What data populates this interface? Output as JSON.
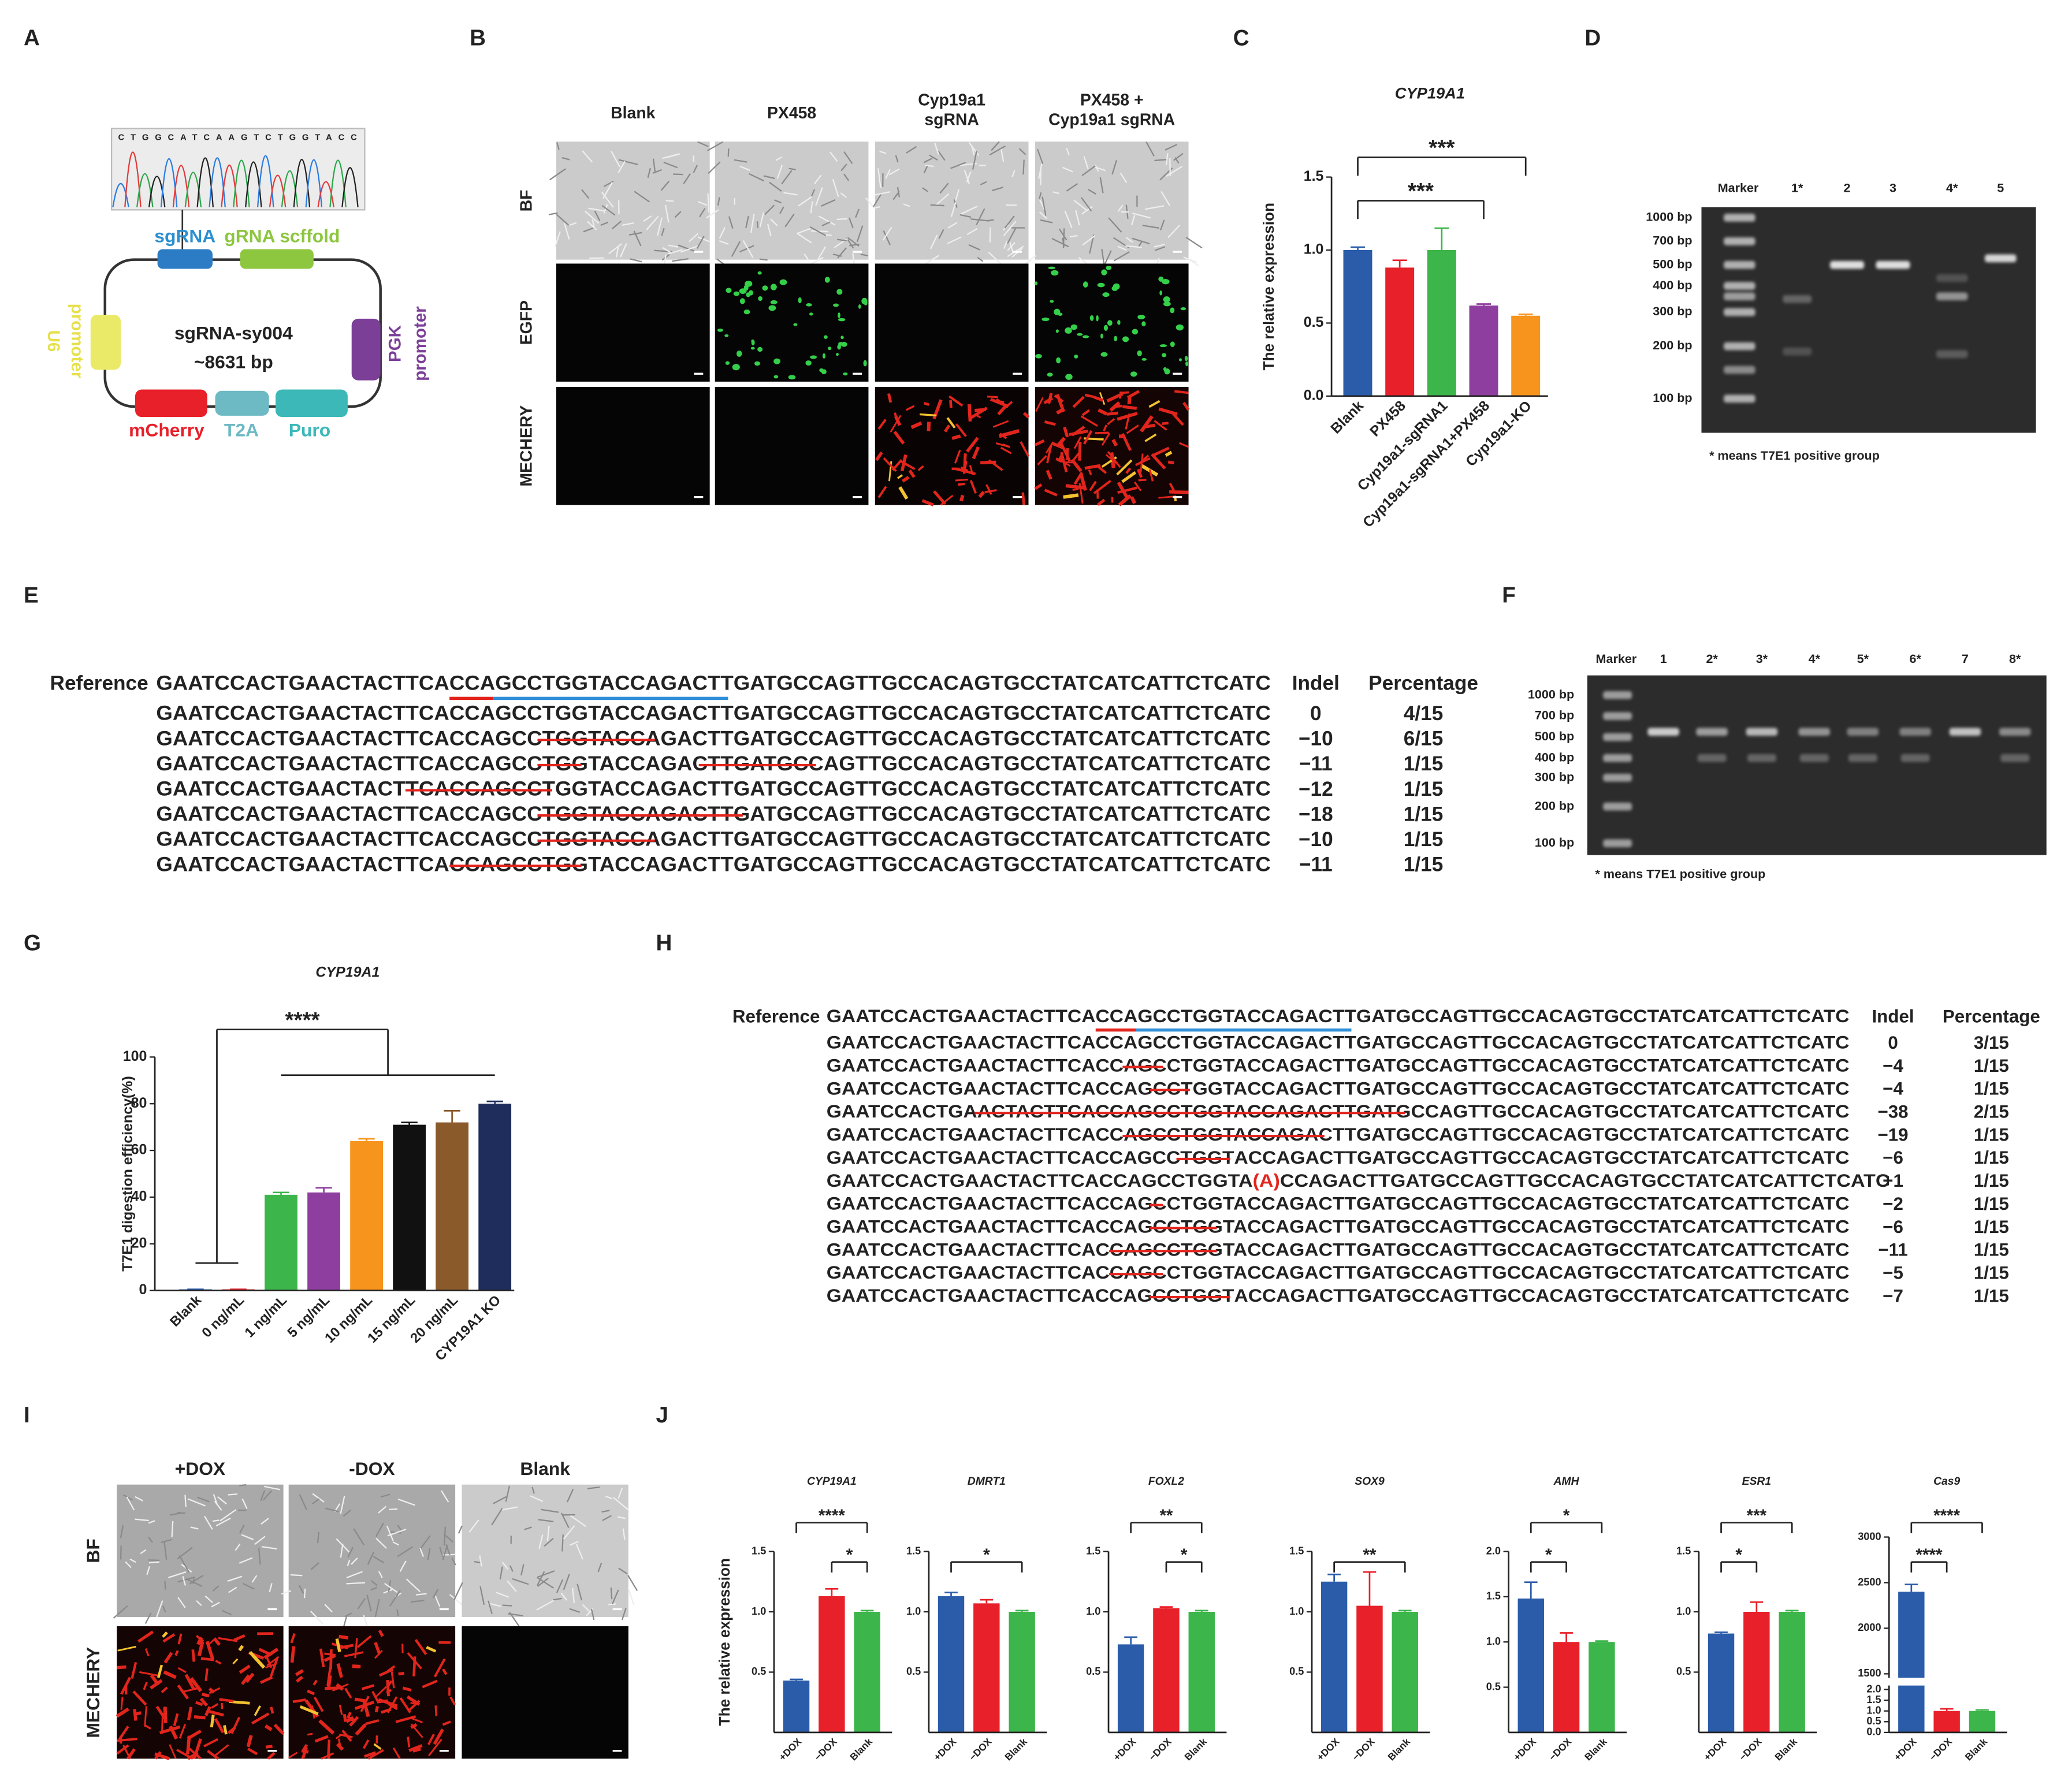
{
  "panel_labels": [
    "A",
    "B",
    "C",
    "D",
    "E",
    "F",
    "G",
    "H",
    "I",
    "J"
  ],
  "plasmid": {
    "chromatogram": "CTGGCATCAAGTCTGGTACC",
    "name": "sgRNA-sy004",
    "size": "~8631 bp",
    "sgrna": "sgRNA",
    "scaffold": "gRNA scffold",
    "u6": [
      "U6",
      "promoter"
    ],
    "pgk": [
      "PGK",
      "promoter"
    ],
    "mcherry": "mCherry",
    "t2a": "T2A",
    "puro": "Puro"
  },
  "imaging_B": {
    "columns": [
      [
        "Blank"
      ],
      [
        "PX458"
      ],
      [
        "Cyp19a1",
        "sgRNA"
      ],
      [
        "PX458 +",
        "Cyp19a1 sgRNA"
      ]
    ],
    "rows": [
      "BF",
      "EGFP",
      "MECHERY"
    ]
  },
  "imaging_I": {
    "columns": [
      "+DOX",
      "-DOX",
      "Blank"
    ],
    "rows": [
      "BF",
      "MECHERY"
    ]
  },
  "gel_D": {
    "lanes": [
      "Marker",
      "1*",
      "2",
      "3",
      "4*",
      "5"
    ],
    "ladder": [
      "1000 bp",
      "700 bp",
      "500 bp",
      "400 bp",
      "300 bp",
      "200 bp",
      "100 bp"
    ],
    "note": "* means T7E1 positive group"
  },
  "gel_F": {
    "lanes": [
      "Marker",
      "1",
      "2*",
      "3*",
      "4*",
      "5*",
      "6*",
      "7",
      "8*"
    ],
    "ladder": [
      "1000 bp",
      "700 bp",
      "500 bp",
      "400 bp",
      "300 bp",
      "200 bp",
      "100 bp"
    ],
    "note": "* means T7E1 positive group"
  },
  "style_colors": {
    "deleted": "#e3241d",
    "inserted": "#e3241d",
    "pam": "#e3241d",
    "target": "#2f8fd8"
  },
  "sequences_E": {
    "headers": [
      "Indel",
      "Percentage"
    ],
    "reference": {
      "label": "Reference",
      "segments": [
        {
          "text": "GAATCCACTGAACTACTTCA"
        },
        {
          "text": "CCA",
          "style": "pam"
        },
        {
          "text": "GCCTGGTACCAGACTT",
          "style": "target"
        },
        {
          "text": "GATGCCAGTTGCCACAGTGCCTATCATCATTCTCATC"
        }
      ]
    },
    "rows": [
      {
        "segments": [
          {
            "text": "GAATCCACTGAACTACTTCACCAGCCTGGTACCAGACTTGATGCCAGTTGCCACAGTGCCTATCATCATTCTCATC"
          }
        ],
        "indel": "0",
        "percentage": "4/15"
      },
      {
        "segments": [
          {
            "text": "GAATCCACTGAACTACTTCACCAGCC"
          },
          {
            "text": "TGGTACCA",
            "style": "deleted"
          },
          {
            "text": "GACTTGATGCCAGTTGCCACAGTGCCTATCATCATTCTCATC"
          }
        ],
        "indel": "−10",
        "percentage": "6/15"
      },
      {
        "segments": [
          {
            "text": "GAATCCACTGAACTACTTCACCAGCC"
          },
          {
            "text": "TGG",
            "style": "deleted"
          },
          {
            "text": "TACCAGAC"
          },
          {
            "text": "TTGATGCC",
            "style": "deleted"
          },
          {
            "text": "AGTTGCCACAGTGCCTATCATCATTCTCATC"
          }
        ],
        "indel": "−11",
        "percentage": "1/15"
      },
      {
        "segments": [
          {
            "text": "GAATCCACTGAACTACT"
          },
          {
            "text": "TCACCAGCCT",
            "style": "deleted"
          },
          {
            "text": "GGTACCAGACTTGATGCCAGTTGCCACAGTGCCTATCATCATTCTCATC"
          }
        ],
        "indel": "−12",
        "percentage": "1/15"
      },
      {
        "segments": [
          {
            "text": "GAATCCACTGAACTACTTCACCAGCC"
          },
          {
            "text": "TGGTACCAGACTTG",
            "style": "deleted"
          },
          {
            "text": "ATGCCAGTTGCCACAGTGCCTATCATCATTCTCATC"
          }
        ],
        "indel": "−18",
        "percentage": "1/15"
      },
      {
        "segments": [
          {
            "text": "GAATCCACTGAACTACTTCACCAGCC"
          },
          {
            "text": "TGGTACCA",
            "style": "deleted"
          },
          {
            "text": "GACTTGATGCCAGTTGCCACAGTGCCTATCATCATTCTCATC"
          }
        ],
        "indel": "−10",
        "percentage": "1/15"
      },
      {
        "segments": [
          {
            "text": "GAATCCACTGAACTACTTCA"
          },
          {
            "text": "CCAGCCTGG",
            "style": "deleted"
          },
          {
            "text": "TACCAGACTTGATGCCAGTTGCCACAGTGCCTATCATCATTCTCATC"
          }
        ],
        "indel": "−11",
        "percentage": "1/15"
      }
    ]
  },
  "sequences_H": {
    "headers": [
      "Indel",
      "Percentage"
    ],
    "reference": {
      "label": "Reference",
      "segments": [
        {
          "text": "GAATCCACTGAACTACTTCA"
        },
        {
          "text": "CCA",
          "style": "pam"
        },
        {
          "text": "GCCTGGTACCAGACTT",
          "style": "target"
        },
        {
          "text": "GATGCCAGTTGCCACAGTGCCTATCATCATTCTCATC"
        }
      ]
    },
    "rows": [
      {
        "segments": [
          {
            "text": "GAATCCACTGAACTACTTCACCAGCCTGGTACCAGACTTGATGCCAGTTGCCACAGTGCCTATCATCATTCTCATC"
          }
        ],
        "indel": "0",
        "percentage": "3/15"
      },
      {
        "segments": [
          {
            "text": "GAATCCACTGAACTACTTCACC"
          },
          {
            "text": "AGC",
            "style": "deleted"
          },
          {
            "text": "CTGGTACCAGACTTGATGCCAGTTGCCACAGTGCCTATCATCATTCTCATC"
          }
        ],
        "indel": "−4",
        "percentage": "1/15"
      },
      {
        "segments": [
          {
            "text": "GAATCCACTGAACTACTTCACCAG"
          },
          {
            "text": "CCT",
            "style": "deleted"
          },
          {
            "text": "GGTACCAGACTTGATGCCAGTTGCCACAGTGCCTATCATCATTCTCATC"
          }
        ],
        "indel": "−4",
        "percentage": "1/15"
      },
      {
        "segments": [
          {
            "text": "GAATCCACTGA"
          },
          {
            "text": "ACTACTTCACCAGCCTGGTACCAGACTTGATG",
            "style": "deleted"
          },
          {
            "text": "CCAGTTGCCACAGTGCCTATCATCATTCTCATC"
          }
        ],
        "indel": "−38",
        "percentage": "2/15"
      },
      {
        "segments": [
          {
            "text": "GAATCCACTGAACTACTTCACC"
          },
          {
            "text": "AGCCTGGTACCAGAC",
            "style": "deleted"
          },
          {
            "text": "TTGATGCCAGTTGCCACAGTGCCTATCATCATTCTCATC"
          }
        ],
        "indel": "−19",
        "percentage": "1/15"
      },
      {
        "segments": [
          {
            "text": "GAATCCACTGAACTACTTCACCAGCC"
          },
          {
            "text": "TGGT",
            "style": "deleted"
          },
          {
            "text": "ACCAGACTTGATGCCAGTTGCCACAGTGCCTATCATCATTCTCATC"
          }
        ],
        "indel": "−6",
        "percentage": "1/15"
      },
      {
        "segments": [
          {
            "text": "GAATCCACTGAACTACTTCACCAGCCTGGTA"
          },
          {
            "text": "(A)",
            "style": "inserted"
          },
          {
            "text": "CCAGACTTGATGCCAGTTGCCACAGTGCCTATCATCATTCTCATC"
          }
        ],
        "indel": "+1",
        "percentage": "1/15"
      },
      {
        "segments": [
          {
            "text": "GAATCCACTGAACTACTTCACCAG"
          },
          {
            "text": "C",
            "style": "deleted"
          },
          {
            "text": "CTGGTACCAGACTTGATGCCAGTTGCCACAGTGCCTATCATCATTCTCATC"
          }
        ],
        "indel": "−2",
        "percentage": "1/15"
      },
      {
        "segments": [
          {
            "text": "GAATCCACTGAACTACTTCACCAG"
          },
          {
            "text": "CCTGG",
            "style": "deleted"
          },
          {
            "text": "TACCAGACTTGATGCCAGTTGCCACAGTGCCTATCATCATTCTCATC"
          }
        ],
        "indel": "−6",
        "percentage": "1/15"
      },
      {
        "segments": [
          {
            "text": "GAATCCACTGAACTACTTCAC"
          },
          {
            "text": "CAGCCTGG",
            "style": "deleted"
          },
          {
            "text": "TACCAGACTTGATGCCAGTTGCCACAGTGCCTATCATCATTCTCATC"
          }
        ],
        "indel": "−11",
        "percentage": "1/15"
      },
      {
        "segments": [
          {
            "text": "GAATCCACTGAACTACTTCAC"
          },
          {
            "text": "CAGC",
            "style": "deleted"
          },
          {
            "text": "CTGGTACCAGACTTGATGCCAGTTGCCACAGTGCCTATCATCATTCTCATC"
          }
        ],
        "indel": "−5",
        "percentage": "1/15"
      },
      {
        "segments": [
          {
            "text": "GAATCCACTGAACTACTTCACCAG"
          },
          {
            "text": "CCTGGT",
            "style": "deleted"
          },
          {
            "text": "ACCAGACTTGATGCCAGTTGCCACAGTGCCTATCATCATTCTCATC"
          }
        ],
        "indel": "−7",
        "percentage": "1/15"
      }
    ]
  },
  "chart_data": [
    {
      "type": "bar",
      "title": "CYP19A1",
      "ylabel": "The relative expression",
      "categories": [
        "Blank",
        "PX458",
        "Cyp19a1-sgRNA1",
        "Cyp19a1-sgRNA1+PX458",
        "Cyp19a1-KO"
      ],
      "values": [
        1.0,
        0.88,
        1.0,
        0.62,
        0.55
      ],
      "errors": [
        0.02,
        0.05,
        0.15,
        0.01,
        0.01
      ],
      "colors": [
        "#2a5caa",
        "#e8202a",
        "#3cb54a",
        "#8e3e9e",
        "#f7941d"
      ],
      "ylim": [
        0,
        1.5
      ],
      "yticks": [
        {
          "value": 0,
          "label": "0.0"
        },
        0.5,
        {
          "value": 1,
          "label": "1.0"
        },
        1.5
      ],
      "significance": [
        {
          "label": "***",
          "from": [
            "Blank"
          ],
          "to": [
            "Cyp19a1-sgRNA1+PX458"
          ]
        },
        {
          "label": "***",
          "from": [
            "Blank"
          ],
          "to": [
            "Cyp19a1-KO"
          ]
        }
      ]
    },
    {
      "type": "bar",
      "title": "CYP19A1",
      "ylabel": "T7E1 digestion efficiency(%)",
      "categories": [
        "Blank",
        "0 ng/mL",
        "1 ng/mL",
        "5 ng/mL",
        "10 ng/mL",
        "15 ng/mL",
        "20 ng/mL",
        "CYP19A1 KO"
      ],
      "values": [
        0.5,
        0.5,
        41,
        42,
        64,
        71,
        72,
        80
      ],
      "errors": [
        0,
        0,
        1,
        2,
        1,
        1,
        5,
        1
      ],
      "colors": [
        "#2a5caa",
        "#e8202a",
        "#3cb54a",
        "#8e3e9e",
        "#f7941d",
        "#111111",
        "#8b5a2b",
        "#1f2d5c"
      ],
      "ylim": [
        0,
        100
      ],
      "yticks": [
        0,
        20,
        40,
        60,
        80,
        100
      ],
      "significance": [
        {
          "label": "****",
          "from": [
            "Blank",
            "0 ng/mL"
          ],
          "to": [
            "1 ng/mL",
            "CYP19A1 KO"
          ]
        }
      ]
    },
    {
      "type": "bar",
      "title": "CYP19A1",
      "ylabel": "The relative expression",
      "categories": [
        "+DOX",
        "−DOX",
        "Blank"
      ],
      "values": [
        0.43,
        1.13,
        1.0
      ],
      "errors": [
        0.01,
        0.06,
        0.01
      ],
      "colors": [
        "#2a5caa",
        "#e8202a",
        "#3cb54a"
      ],
      "ylim": [
        0,
        1.5
      ],
      "yticks": [
        0.5,
        {
          "value": 1,
          "label": "1.0"
        },
        1.5
      ],
      "significance": [
        {
          "label": "*",
          "from": [
            "−DOX"
          ],
          "to": [
            "Blank"
          ]
        },
        {
          "label": "****",
          "from": [
            "+DOX"
          ],
          "to": [
            "Blank"
          ]
        }
      ]
    },
    {
      "type": "bar",
      "title": "DMRT1",
      "categories": [
        "+DOX",
        "−DOX",
        "Blank"
      ],
      "values": [
        1.13,
        1.07,
        1.0
      ],
      "errors": [
        0.03,
        0.03,
        0.01
      ],
      "colors": [
        "#2a5caa",
        "#e8202a",
        "#3cb54a"
      ],
      "ylim": [
        0,
        1.5
      ],
      "yticks": [
        0.5,
        {
          "value": 1,
          "label": "1.0"
        },
        1.5
      ],
      "significance": [
        {
          "label": "*",
          "from": [
            "+DOX"
          ],
          "to": [
            "Blank"
          ]
        }
      ]
    },
    {
      "type": "bar",
      "title": "FOXL2",
      "categories": [
        "+DOX",
        "−DOX",
        "Blank"
      ],
      "values": [
        0.73,
        1.03,
        1.0
      ],
      "errors": [
        0.06,
        0.01,
        0.01
      ],
      "colors": [
        "#2a5caa",
        "#e8202a",
        "#3cb54a"
      ],
      "ylim": [
        0,
        1.5
      ],
      "yticks": [
        0.5,
        {
          "value": 1,
          "label": "1.0"
        },
        1.5
      ],
      "significance": [
        {
          "label": "*",
          "from": [
            "−DOX"
          ],
          "to": [
            "Blank"
          ]
        },
        {
          "label": "**",
          "from": [
            "+DOX"
          ],
          "to": [
            "Blank"
          ]
        }
      ]
    },
    {
      "type": "bar",
      "title": "SOX9",
      "categories": [
        "+DOX",
        "−DOX",
        "Blank"
      ],
      "values": [
        1.25,
        1.05,
        1.0
      ],
      "errors": [
        0.06,
        0.28,
        0.01
      ],
      "colors": [
        "#2a5caa",
        "#e8202a",
        "#3cb54a"
      ],
      "ylim": [
        0,
        1.5
      ],
      "yticks": [
        0.5,
        {
          "value": 1,
          "label": "1.0"
        },
        1.5
      ],
      "significance": [
        {
          "label": "**",
          "from": [
            "+DOX"
          ],
          "to": [
            "Blank"
          ]
        }
      ]
    },
    {
      "type": "bar",
      "title": "AMH",
      "categories": [
        "+DOX",
        "−DOX",
        "Blank"
      ],
      "values": [
        1.48,
        1.0,
        1.0
      ],
      "errors": [
        0.18,
        0.1,
        0.01
      ],
      "colors": [
        "#2a5caa",
        "#e8202a",
        "#3cb54a"
      ],
      "ylim": [
        0,
        2
      ],
      "yticks": [
        0.5,
        {
          "value": 1,
          "label": "1.0"
        },
        1.5,
        {
          "value": 2,
          "label": "2.0"
        }
      ],
      "significance": [
        {
          "label": "*",
          "from": [
            "+DOX"
          ],
          "to": [
            "−DOX"
          ]
        },
        {
          "label": "*",
          "from": [
            "+DOX"
          ],
          "to": [
            "Blank"
          ]
        }
      ]
    },
    {
      "type": "bar",
      "title": "ESR1",
      "categories": [
        "+DOX",
        "−DOX",
        "Blank"
      ],
      "values": [
        0.82,
        1.0,
        1.0
      ],
      "errors": [
        0.01,
        0.08,
        0.01
      ],
      "colors": [
        "#2a5caa",
        "#e8202a",
        "#3cb54a"
      ],
      "ylim": [
        0,
        1.5
      ],
      "yticks": [
        0.5,
        {
          "value": 1,
          "label": "1.0"
        },
        1.5
      ],
      "significance": [
        {
          "label": "*",
          "from": [
            "+DOX"
          ],
          "to": [
            "−DOX"
          ]
        },
        {
          "label": "***",
          "from": [
            "+DOX"
          ],
          "to": [
            "Blank"
          ]
        }
      ]
    },
    {
      "type": "broken-bar",
      "title": "Cas9",
      "categories": [
        "+DOX",
        "−DOX",
        "Blank"
      ],
      "values": [
        2400,
        1.0,
        1.0
      ],
      "errors": [
        80,
        0.1,
        0.05
      ],
      "colors": [
        "#2a5caa",
        "#e8202a",
        "#3cb54a"
      ],
      "ylim_segments": [
        [
          0,
          2
        ],
        [
          1500,
          3000
        ]
      ],
      "yticks": [
        {
          "value": 0,
          "label": "0.0"
        },
        0.5,
        {
          "value": 1,
          "label": "1.0"
        },
        1.5,
        {
          "value": 2,
          "label": "2.0"
        },
        1500,
        2000,
        2500,
        3000
      ],
      "significance": [
        {
          "label": "****",
          "from": [
            "+DOX"
          ],
          "to": [
            "−DOX"
          ]
        },
        {
          "label": "****",
          "from": [
            "+DOX"
          ],
          "to": [
            "Blank"
          ]
        }
      ]
    }
  ]
}
